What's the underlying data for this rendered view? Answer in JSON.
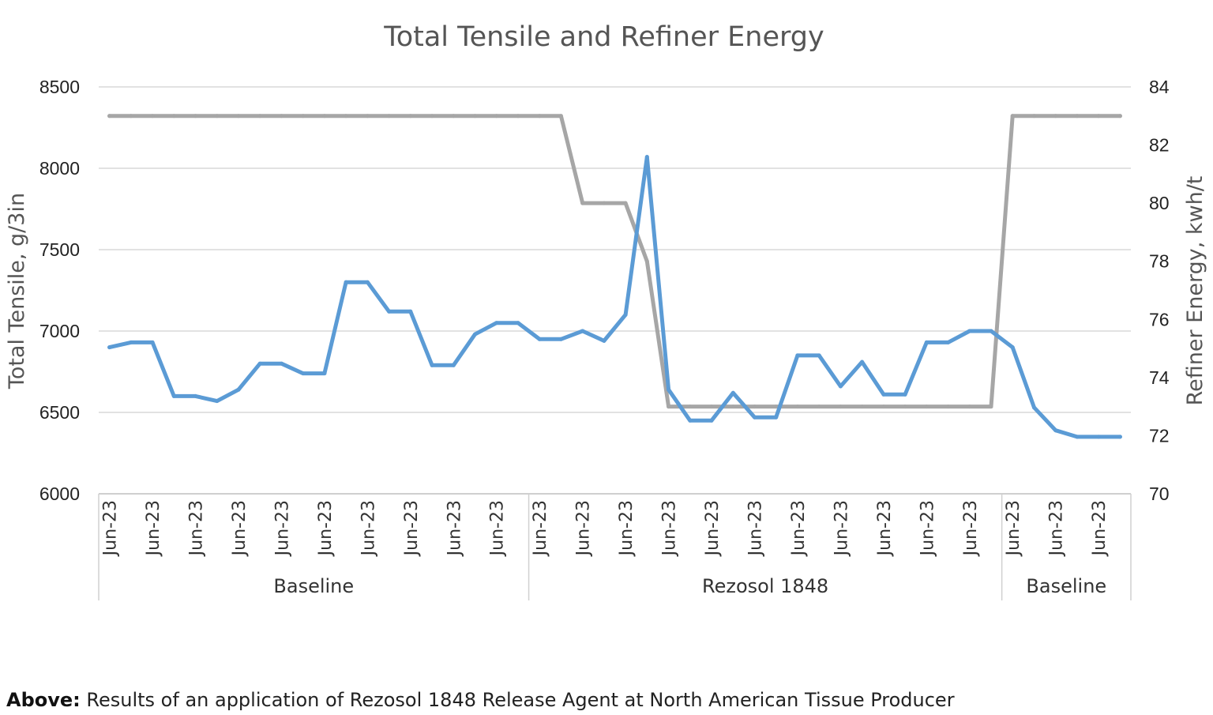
{
  "chart_data": {
    "type": "line",
    "title": "Total Tensile and Refiner Energy",
    "ylabel": "Total Tensile, g/3in",
    "y2label": "Refiner Energy, kwh/t",
    "ylim": [
      6000,
      8500
    ],
    "y2lim": [
      70,
      84
    ],
    "yticks": [
      6000,
      6500,
      7000,
      7500,
      8000,
      8500
    ],
    "y2ticks": [
      70,
      72,
      74,
      76,
      78,
      80,
      82,
      84
    ],
    "grid": true,
    "n_points": 48,
    "x_tick_label": "Jun-23",
    "groups": [
      {
        "label": "Baseline",
        "start": 0,
        "end": 19
      },
      {
        "label": "Rezosol 1848",
        "start": 20,
        "end": 41
      },
      {
        "label": "Baseline",
        "start": 42,
        "end": 47
      }
    ],
    "series": [
      {
        "axis": "left",
        "color": "#5b9bd5",
        "values": [
          6900,
          6930,
          6930,
          6600,
          6600,
          6570,
          6640,
          6800,
          6800,
          6740,
          6740,
          7300,
          7300,
          7120,
          7120,
          6790,
          6790,
          6980,
          7050,
          7050,
          6950,
          6950,
          7000,
          6940,
          7100,
          8070,
          6640,
          6450,
          6450,
          6620,
          6470,
          6470,
          6850,
          6850,
          6660,
          6810,
          6610,
          6610,
          6930,
          6930,
          7000,
          7000,
          6900,
          6530,
          6390,
          6350,
          6350,
          6350
        ]
      },
      {
        "axis": "right",
        "color": "#a6a6a6",
        "values": [
          83,
          83,
          83,
          83,
          83,
          83,
          83,
          83,
          83,
          83,
          83,
          83,
          83,
          83,
          83,
          83,
          83,
          83,
          83,
          83,
          83,
          83,
          80,
          80,
          80,
          78,
          73,
          73,
          73,
          73,
          73,
          73,
          73,
          73,
          73,
          73,
          73,
          73,
          73,
          73,
          73,
          73,
          83,
          83,
          83,
          83,
          83,
          83
        ]
      }
    ]
  },
  "caption": {
    "lead": "Above:",
    "text": " Results of an application of Rezosol 1848 Release Agent  at North American Tissue Producer"
  }
}
